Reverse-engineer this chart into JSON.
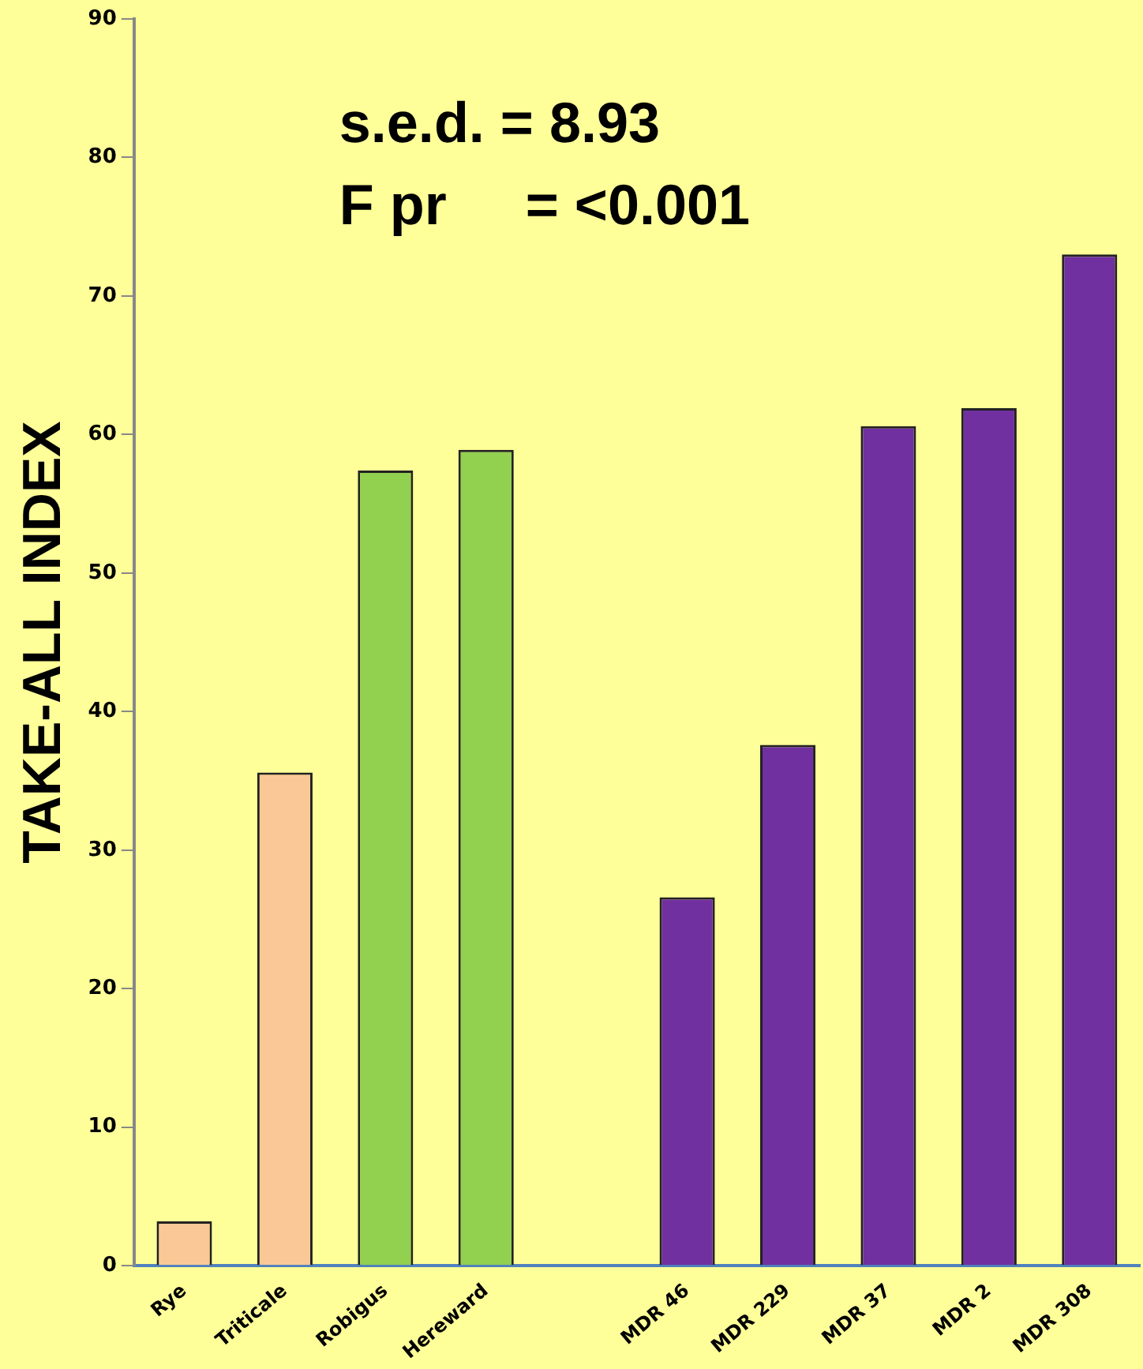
{
  "chart_data": {
    "type": "bar",
    "ylabel": "TAKE-ALL INDEX",
    "categories": [
      "Rye",
      "Triticale",
      "Robigus",
      "Hereward",
      null,
      "MDR 46",
      "MDR 229",
      "MDR 37",
      "MDR 2",
      "MDR 308"
    ],
    "values": [
      3.2,
      35.6,
      57.4,
      58.9,
      null,
      26.6,
      37.6,
      60.6,
      61.9,
      73.0
    ],
    "colors": [
      "#fac896",
      "#fac896",
      "#92d050",
      "#92d050",
      null,
      "#7030a0",
      "#7030a0",
      "#7030a0",
      "#7030a0",
      "#7030a0"
    ],
    "ylim": [
      0,
      90
    ],
    "yticks": [
      0,
      10,
      20,
      30,
      40,
      50,
      60,
      70,
      80,
      90
    ],
    "annotations": [
      "s.e.d. = 8.93",
      "F pr     = <0.001"
    ],
    "grid": false,
    "legend": false
  }
}
